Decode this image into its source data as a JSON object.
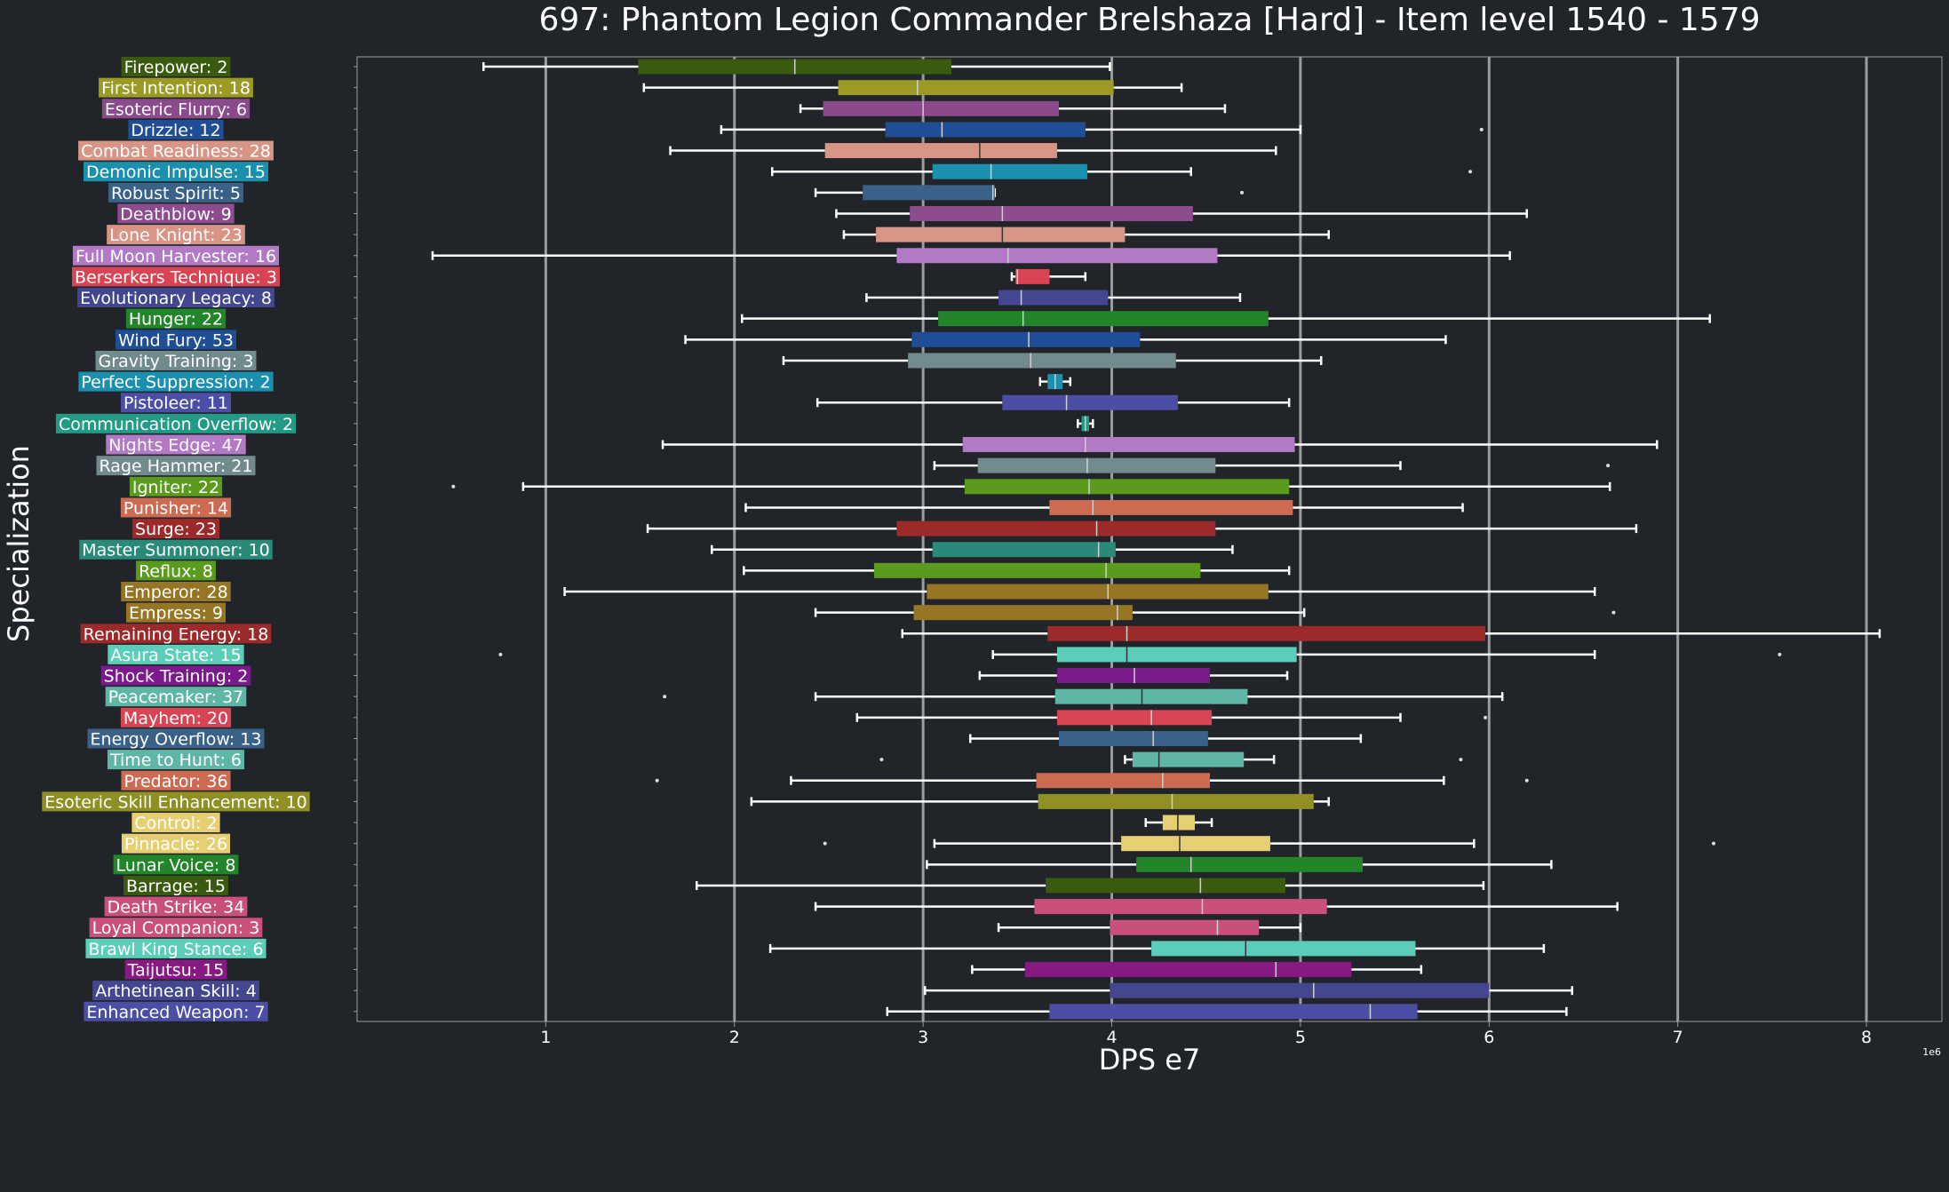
{
  "chart_data": {
    "type": "box",
    "orientation": "horizontal",
    "title": "697: Phantom Legion Commander Brelshaza [Hard] - Item level 1540 - 1579",
    "xlabel": "DPS e7",
    "ylabel": "Specialization",
    "x_offset_label": "1e6",
    "xlim": [
      0,
      8.4
    ],
    "xticks": [
      1,
      2,
      3,
      4,
      5,
      6,
      7,
      8
    ],
    "grid": "vertical",
    "colors": {
      "background": "#212428",
      "text": "#ffffff",
      "grid": "#9c9c9c",
      "whisker": "#ffffff"
    },
    "series": [
      {
        "label": "Firepower: 2",
        "color": "#3a5a10",
        "whislo": 0.67,
        "q1": 1.49,
        "med": 2.32,
        "q3": 3.15,
        "whishi": 3.99,
        "fliers": []
      },
      {
        "label": "First Intention: 18",
        "color": "#9a9a24",
        "whislo": 1.52,
        "q1": 2.55,
        "med": 2.97,
        "q3": 4.01,
        "whishi": 4.37,
        "fliers": []
      },
      {
        "label": "Esoteric Flurry: 6",
        "color": "#8a4a8c",
        "whislo": 2.35,
        "q1": 2.47,
        "med": 3.0,
        "q3": 3.72,
        "whishi": 4.6,
        "fliers": []
      },
      {
        "label": "Drizzle: 12",
        "color": "#1f4e96",
        "whislo": 1.93,
        "q1": 2.8,
        "med": 3.1,
        "q3": 3.86,
        "whishi": 5.0,
        "fliers": [
          5.96
        ]
      },
      {
        "label": "Combat Readiness: 28",
        "color": "#d89585",
        "whislo": 1.66,
        "q1": 2.48,
        "med": 3.3,
        "q3": 3.71,
        "whishi": 4.87,
        "fliers": []
      },
      {
        "label": "Demonic Impulse: 15",
        "color": "#1a8fae",
        "whislo": 2.2,
        "q1": 3.05,
        "med": 3.36,
        "q3": 3.87,
        "whishi": 4.42,
        "fliers": [
          5.9
        ]
      },
      {
        "label": "Robust Spirit: 5",
        "color": "#3a6288",
        "whislo": 2.43,
        "q1": 2.68,
        "med": 3.37,
        "q3": 3.38,
        "whishi": 3.38,
        "fliers": [
          4.69
        ]
      },
      {
        "label": "Deathblow: 9",
        "color": "#8c4c8e",
        "whislo": 2.54,
        "q1": 2.93,
        "med": 3.42,
        "q3": 4.43,
        "whishi": 6.2,
        "fliers": []
      },
      {
        "label": "Lone Knight: 23",
        "color": "#d89585",
        "whislo": 2.58,
        "q1": 2.75,
        "med": 3.42,
        "q3": 4.07,
        "whishi": 5.15,
        "fliers": []
      },
      {
        "label": "Full Moon Harvester: 16",
        "color": "#b27ac4",
        "whislo": 0.4,
        "q1": 2.86,
        "med": 3.45,
        "q3": 4.56,
        "whishi": 6.11,
        "fliers": []
      },
      {
        "label": "Berserkers Technique: 3",
        "color": "#d94454",
        "whislo": 3.47,
        "q1": 3.49,
        "med": 3.5,
        "q3": 3.67,
        "whishi": 3.86,
        "fliers": []
      },
      {
        "label": "Evolutionary Legacy: 8",
        "color": "#424790",
        "whislo": 2.7,
        "q1": 3.4,
        "med": 3.52,
        "q3": 3.98,
        "whishi": 4.68,
        "fliers": []
      },
      {
        "label": "Hunger: 22",
        "color": "#22852a",
        "whislo": 2.04,
        "q1": 3.08,
        "med": 3.53,
        "q3": 4.83,
        "whishi": 7.17,
        "fliers": []
      },
      {
        "label": "Wind Fury: 53",
        "color": "#1f4e96",
        "whislo": 1.74,
        "q1": 2.94,
        "med": 3.56,
        "q3": 4.15,
        "whishi": 5.77,
        "fliers": []
      },
      {
        "label": "Gravity Training: 3",
        "color": "#718a8d",
        "whislo": 2.26,
        "q1": 2.92,
        "med": 3.57,
        "q3": 4.34,
        "whishi": 5.11,
        "fliers": []
      },
      {
        "label": "Perfect Suppression: 2",
        "color": "#1a8fae",
        "whislo": 3.62,
        "q1": 3.66,
        "med": 3.7,
        "q3": 3.74,
        "whishi": 3.78,
        "fliers": []
      },
      {
        "label": "Pistoleer: 11",
        "color": "#4a4ea4",
        "whislo": 2.44,
        "q1": 3.42,
        "med": 3.76,
        "q3": 4.35,
        "whishi": 4.94,
        "fliers": []
      },
      {
        "label": "Communication Overflow: 2",
        "color": "#229a86",
        "whislo": 3.82,
        "q1": 3.84,
        "med": 3.86,
        "q3": 3.88,
        "whishi": 3.9,
        "fliers": []
      },
      {
        "label": "Nights Edge: 47",
        "color": "#b27ac4",
        "whislo": 1.62,
        "q1": 3.21,
        "med": 3.86,
        "q3": 4.97,
        "whishi": 6.89,
        "fliers": []
      },
      {
        "label": "Rage Hammer: 21",
        "color": "#718a8d",
        "whislo": 3.06,
        "q1": 3.29,
        "med": 3.87,
        "q3": 4.55,
        "whishi": 5.53,
        "fliers": [
          6.63
        ]
      },
      {
        "label": "Igniter: 22",
        "color": "#5a9a1c",
        "whislo": 0.88,
        "q1": 3.22,
        "med": 3.88,
        "q3": 4.94,
        "whishi": 6.64,
        "fliers": [
          0.51
        ]
      },
      {
        "label": "Punisher: 14",
        "color": "#cd6b52",
        "whislo": 2.06,
        "q1": 3.67,
        "med": 3.9,
        "q3": 4.96,
        "whishi": 5.86,
        "fliers": []
      },
      {
        "label": "Surge: 23",
        "color": "#9c2a2a",
        "whislo": 1.54,
        "q1": 2.86,
        "med": 3.92,
        "q3": 4.55,
        "whishi": 6.78,
        "fliers": []
      },
      {
        "label": "Master Summoner: 10",
        "color": "#2a8a7a",
        "whislo": 1.88,
        "q1": 3.05,
        "med": 3.93,
        "q3": 4.02,
        "whishi": 4.64,
        "fliers": []
      },
      {
        "label": "Reflux: 8",
        "color": "#5a9a1c",
        "whislo": 2.05,
        "q1": 2.74,
        "med": 3.97,
        "q3": 4.47,
        "whishi": 4.94,
        "fliers": []
      },
      {
        "label": "Emperor: 28",
        "color": "#967524",
        "whislo": 1.1,
        "q1": 3.02,
        "med": 3.98,
        "q3": 4.83,
        "whishi": 6.56,
        "fliers": []
      },
      {
        "label": "Empress: 9",
        "color": "#967524",
        "whislo": 2.43,
        "q1": 2.95,
        "med": 4.03,
        "q3": 4.11,
        "whishi": 5.02,
        "fliers": [
          6.66
        ]
      },
      {
        "label": "Remaining Energy: 18",
        "color": "#9c2a2a",
        "whislo": 2.89,
        "q1": 3.66,
        "med": 4.08,
        "q3": 5.98,
        "whishi": 8.07,
        "fliers": []
      },
      {
        "label": "Asura State: 15",
        "color": "#5ccdb9",
        "whislo": 3.37,
        "q1": 3.71,
        "med": 4.08,
        "q3": 4.98,
        "whishi": 6.56,
        "fliers": [
          0.76,
          7.54
        ]
      },
      {
        "label": "Shock Training: 2",
        "color": "#7a1a8c",
        "whislo": 3.3,
        "q1": 3.71,
        "med": 4.12,
        "q3": 4.52,
        "whishi": 4.93,
        "fliers": []
      },
      {
        "label": "Peacemaker: 37",
        "color": "#5fb5a6",
        "whislo": 2.43,
        "q1": 3.7,
        "med": 4.16,
        "q3": 4.72,
        "whishi": 6.07,
        "fliers": [
          1.63
        ]
      },
      {
        "label": "Mayhem: 20",
        "color": "#d94454",
        "whislo": 2.65,
        "q1": 3.71,
        "med": 4.21,
        "q3": 4.53,
        "whishi": 5.53,
        "fliers": [
          5.98
        ]
      },
      {
        "label": "Energy Overflow: 13",
        "color": "#3a6288",
        "whislo": 3.25,
        "q1": 3.72,
        "med": 4.22,
        "q3": 4.51,
        "whishi": 5.32,
        "fliers": []
      },
      {
        "label": "Time to Hunt: 6",
        "color": "#5fb5a6",
        "whislo": 4.07,
        "q1": 4.11,
        "med": 4.25,
        "q3": 4.7,
        "whishi": 4.86,
        "fliers": [
          2.78,
          5.85
        ]
      },
      {
        "label": "Predator: 36",
        "color": "#cd6b52",
        "whislo": 2.3,
        "q1": 3.6,
        "med": 4.27,
        "q3": 4.52,
        "whishi": 5.76,
        "fliers": [
          1.59,
          6.2
        ]
      },
      {
        "label": "Esoteric Skill Enhancement: 10",
        "color": "#8f8f24",
        "whislo": 2.09,
        "q1": 3.61,
        "med": 4.32,
        "q3": 5.07,
        "whishi": 5.15,
        "fliers": []
      },
      {
        "label": "Control: 2",
        "color": "#e6cf72",
        "whislo": 4.18,
        "q1": 4.27,
        "med": 4.35,
        "q3": 4.44,
        "whishi": 4.53,
        "fliers": []
      },
      {
        "label": "Pinnacle: 26",
        "color": "#e6cf72",
        "whislo": 3.06,
        "q1": 4.05,
        "med": 4.36,
        "q3": 4.84,
        "whishi": 5.92,
        "fliers": [
          2.48,
          7.19
        ]
      },
      {
        "label": "Lunar Voice: 8",
        "color": "#22852a",
        "whislo": 3.02,
        "q1": 4.13,
        "med": 4.42,
        "q3": 5.33,
        "whishi": 6.33,
        "fliers": []
      },
      {
        "label": "Barrage: 15",
        "color": "#3a5a10",
        "whislo": 1.8,
        "q1": 3.65,
        "med": 4.47,
        "q3": 4.92,
        "whishi": 5.97,
        "fliers": []
      },
      {
        "label": "Death Strike: 34",
        "color": "#c9507a",
        "whislo": 2.43,
        "q1": 3.59,
        "med": 4.48,
        "q3": 5.14,
        "whishi": 6.68,
        "fliers": []
      },
      {
        "label": "Loyal Companion: 3",
        "color": "#c9507a",
        "whislo": 3.4,
        "q1": 3.99,
        "med": 4.56,
        "q3": 4.78,
        "whishi": 5.0,
        "fliers": []
      },
      {
        "label": "Brawl King Stance: 6",
        "color": "#5ccdb9",
        "whislo": 2.19,
        "q1": 4.21,
        "med": 4.71,
        "q3": 5.61,
        "whishi": 6.29,
        "fliers": []
      },
      {
        "label": "Taijutsu: 15",
        "color": "#861a82",
        "whislo": 3.26,
        "q1": 3.54,
        "med": 4.87,
        "q3": 5.27,
        "whishi": 5.64,
        "fliers": []
      },
      {
        "label": "Arthetinean Skill: 4",
        "color": "#424790",
        "whislo": 3.01,
        "q1": 3.99,
        "med": 5.07,
        "q3": 6.0,
        "whishi": 6.44,
        "fliers": []
      },
      {
        "label": "Enhanced Weapon: 7",
        "color": "#4a4ea4",
        "whislo": 2.81,
        "q1": 3.67,
        "med": 5.37,
        "q3": 5.62,
        "whishi": 6.41,
        "fliers": []
      }
    ]
  }
}
